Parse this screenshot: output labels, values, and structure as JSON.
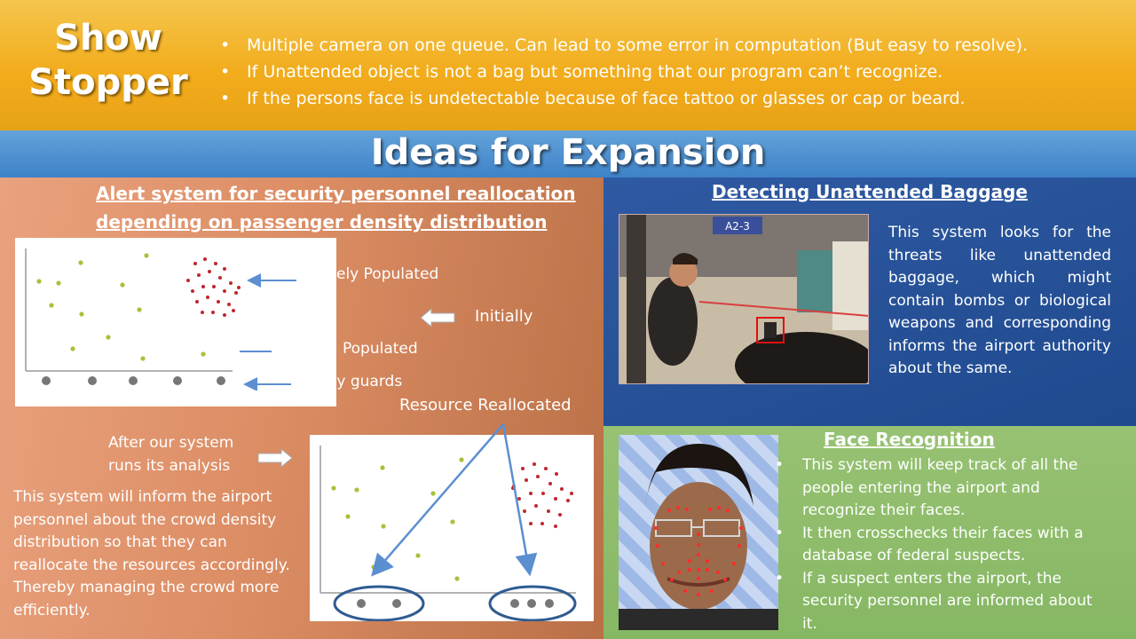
{
  "show_stopper": {
    "title_line1": "Show",
    "title_line2": "Stopper",
    "items": [
      "Multiple camera on one queue. Can lead to some error in computation (But easy to resolve).",
      "If Unattended object is not a bag but something that our program can’t recognize.",
      "If the persons face is undetectable because of face tattoo or glasses or cap or beard."
    ]
  },
  "expansion_title": "Ideas for Expansion",
  "alert_system": {
    "heading_line1": "Alert system for security personnel reallocation",
    "heading_line2": "depending on passenger density distribution",
    "label_densely": "ely Populated",
    "label_initially": "Initially",
    "label_sparsely": "Populated",
    "label_guards": "ity guards",
    "label_reallocated": "Resource Reallocated",
    "after_line1": "After our system",
    "after_line2": "runs its analysis",
    "description": "This system will inform the airport personnel about the crowd density distribution so that they can reallocate the resources accordingly. Thereby managing the crowd more efficiently.",
    "colors": {
      "green_dot": "#a6c23a",
      "red_dot": "#c0272d",
      "gray_dot": "#777777",
      "arrow": "#5b8fd0"
    }
  },
  "baggage": {
    "heading": "Detecting Unattended Baggage",
    "description": "This system looks for the threats like unattended baggage, which might contain bombs or biological weapons and corresponding informs the airport authority about the same.",
    "sign_text": "A2-3"
  },
  "face": {
    "heading": "Face Recognition",
    "items": [
      "This system will keep track of all the people entering the airport and recognize their faces.",
      "It then crosschecks their faces with a database of federal suspects.",
      "If a suspect enters the airport, the security personnel are informed about it."
    ]
  }
}
